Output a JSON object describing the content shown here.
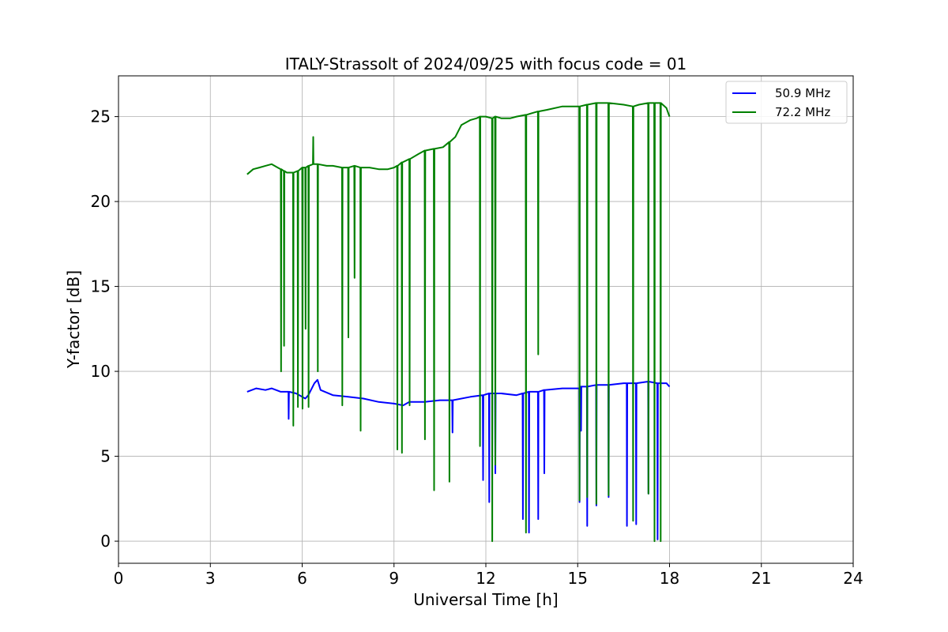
{
  "chart_data": {
    "type": "line",
    "title": "ITALY-Strassolt of 2024/09/25 with focus code = 01",
    "xlabel": "Universal Time [h]",
    "ylabel": "Y-factor [dB]",
    "xlim": [
      0,
      24
    ],
    "ylim": [
      -1.3,
      27.4
    ],
    "xticks": [
      0,
      3,
      6,
      9,
      12,
      15,
      18,
      21,
      24
    ],
    "yticks": [
      0,
      5,
      10,
      15,
      20,
      25
    ],
    "grid": true,
    "legend_position": "top-right",
    "series": [
      {
        "name": "50.9 MHz",
        "color": "#0000ff",
        "x": [
          4.2,
          4.5,
          4.8,
          5.0,
          5.3,
          5.55,
          5.56,
          5.57,
          5.8,
          6.0,
          6.1,
          6.2,
          6.4,
          6.5,
          6.6,
          7.0,
          7.5,
          8.0,
          8.5,
          9.0,
          9.3,
          9.5,
          10.0,
          10.5,
          10.9,
          10.91,
          10.92,
          11.5,
          11.9,
          11.91,
          11.92,
          12.1,
          12.11,
          12.12,
          12.3,
          12.31,
          12.32,
          12.5,
          13.0,
          13.2,
          13.21,
          13.22,
          13.4,
          13.41,
          13.42,
          13.7,
          13.71,
          13.72,
          13.9,
          13.91,
          13.92,
          14.5,
          15.0,
          15.05,
          15.06,
          15.07,
          15.1,
          15.11,
          15.12,
          15.3,
          15.31,
          15.32,
          15.6,
          15.61,
          15.62,
          16.0,
          16.01,
          16.02,
          16.5,
          16.6,
          16.61,
          16.62,
          16.9,
          16.91,
          16.92,
          17.3,
          17.31,
          17.32,
          17.6,
          17.61,
          17.62,
          17.9,
          18.0
        ],
        "values": [
          8.8,
          9.0,
          8.9,
          9.0,
          8.8,
          8.8,
          7.2,
          8.8,
          8.7,
          8.5,
          8.4,
          8.6,
          9.3,
          9.5,
          8.9,
          8.6,
          8.5,
          8.4,
          8.2,
          8.1,
          8.0,
          8.2,
          8.2,
          8.3,
          8.3,
          6.4,
          8.3,
          8.5,
          8.6,
          3.6,
          8.6,
          8.7,
          2.3,
          8.7,
          8.7,
          4.0,
          8.7,
          8.7,
          8.6,
          8.7,
          1.3,
          8.7,
          8.8,
          0.5,
          8.8,
          8.8,
          1.3,
          8.8,
          8.9,
          4.0,
          8.9,
          9.0,
          9.0,
          9.0,
          2.3,
          9.0,
          9.1,
          6.5,
          9.1,
          9.1,
          0.9,
          9.1,
          9.2,
          2.1,
          9.2,
          9.2,
          2.6,
          9.2,
          9.3,
          9.3,
          0.9,
          9.3,
          9.3,
          1.0,
          9.3,
          9.4,
          2.8,
          9.4,
          9.3,
          0.1,
          9.3,
          9.3,
          9.1
        ]
      },
      {
        "name": "72.2 MHz",
        "color": "#008000",
        "x": [
          4.2,
          4.4,
          4.6,
          4.8,
          5.0,
          5.2,
          5.3,
          5.31,
          5.32,
          5.4,
          5.41,
          5.42,
          5.5,
          5.7,
          5.71,
          5.72,
          5.85,
          5.86,
          5.87,
          6.0,
          6.01,
          6.02,
          6.1,
          6.11,
          6.12,
          6.2,
          6.21,
          6.22,
          6.35,
          6.36,
          6.37,
          6.5,
          6.51,
          6.52,
          6.8,
          7.0,
          7.3,
          7.31,
          7.32,
          7.5,
          7.51,
          7.52,
          7.7,
          7.71,
          7.72,
          7.9,
          7.91,
          7.92,
          8.2,
          8.5,
          8.8,
          9.0,
          9.1,
          9.11,
          9.12,
          9.25,
          9.26,
          9.27,
          9.5,
          9.51,
          9.52,
          9.8,
          10.0,
          10.01,
          10.02,
          10.3,
          10.31,
          10.32,
          10.6,
          10.8,
          10.81,
          10.82,
          11.0,
          11.2,
          11.5,
          11.7,
          11.8,
          11.81,
          11.82,
          12.0,
          12.2,
          12.21,
          12.22,
          12.3,
          12.31,
          12.32,
          12.5,
          12.8,
          13.0,
          13.3,
          13.31,
          13.32,
          13.5,
          13.7,
          13.71,
          13.72,
          14.0,
          14.5,
          15.0,
          15.05,
          15.06,
          15.07,
          15.3,
          15.31,
          15.32,
          15.6,
          15.61,
          15.62,
          16.0,
          16.01,
          16.02,
          16.5,
          16.8,
          16.81,
          16.82,
          17.0,
          17.3,
          17.31,
          17.32,
          17.5,
          17.51,
          17.52,
          17.7,
          17.71,
          17.72,
          17.9,
          18.0
        ],
        "values": [
          21.6,
          21.9,
          22.0,
          22.1,
          22.2,
          22.0,
          21.9,
          10.0,
          21.9,
          21.8,
          11.5,
          21.8,
          21.7,
          21.7,
          6.8,
          21.7,
          21.8,
          7.9,
          21.8,
          22.0,
          7.8,
          22.0,
          22.0,
          12.5,
          22.0,
          22.1,
          7.9,
          22.1,
          22.2,
          23.8,
          22.2,
          22.2,
          10.0,
          22.2,
          22.1,
          22.1,
          22.0,
          8.0,
          22.0,
          22.0,
          12.0,
          22.0,
          22.1,
          15.5,
          22.1,
          22.0,
          6.5,
          22.0,
          22.0,
          21.9,
          21.9,
          22.0,
          22.1,
          5.4,
          22.1,
          22.3,
          5.2,
          22.3,
          22.5,
          8.0,
          22.5,
          22.8,
          23.0,
          6.0,
          23.0,
          23.1,
          3.0,
          23.1,
          23.2,
          23.5,
          3.5,
          23.5,
          23.8,
          24.5,
          24.8,
          24.9,
          25.0,
          5.6,
          25.0,
          25.0,
          24.9,
          0.0,
          24.9,
          25.0,
          4.5,
          25.0,
          24.9,
          24.9,
          25.0,
          25.1,
          0.5,
          25.1,
          25.2,
          25.3,
          11.0,
          25.3,
          25.4,
          25.6,
          25.6,
          25.6,
          2.4,
          25.6,
          25.7,
          2.6,
          25.7,
          25.8,
          2.2,
          25.8,
          25.8,
          2.7,
          25.8,
          25.7,
          25.6,
          1.2,
          25.6,
          25.7,
          25.8,
          2.8,
          25.8,
          25.8,
          0.0,
          25.8,
          25.8,
          0.0,
          25.8,
          25.5,
          25.0
        ]
      }
    ]
  }
}
